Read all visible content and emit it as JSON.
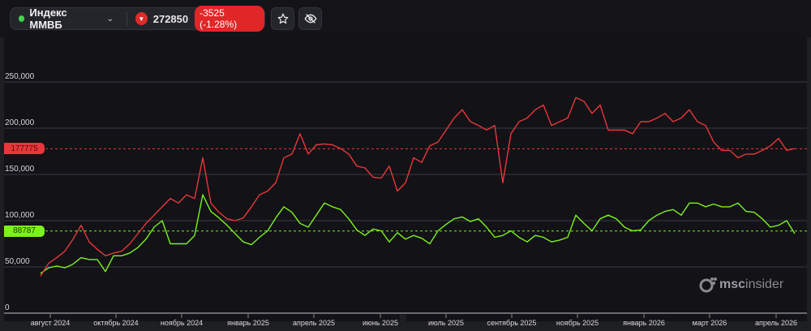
{
  "header": {
    "status_color": "#3fd24a",
    "ticker": "Индекс ММВБ",
    "dropdown_icon": "chevron-down-icon",
    "direction_icon": "triangle-down-icon",
    "price": "272850",
    "change": "-3525 (-1.28%)",
    "favorite_icon": "star-icon",
    "hide_icon": "eye-off-icon"
  },
  "watermark": {
    "brand": "msc",
    "brand2": "insider"
  },
  "chart_data": {
    "type": "line",
    "title": "",
    "xlabel": "",
    "ylabel": "",
    "ylim": [
      0,
      270000
    ],
    "grid": true,
    "y_ticks": [
      0,
      50000,
      100000,
      150000,
      200000,
      250000
    ],
    "y_tick_labels": [
      "0",
      "50,000",
      "100,000",
      "150,000",
      "200,000",
      "250,000"
    ],
    "x_tick_labels": [
      "август 2024",
      "октябрь 2024",
      "ноябрь 2024",
      "январь 2025",
      "апрель 2025",
      "июнь 2025",
      "июль 2025",
      "сентябрь 2025",
      "ноябрь 2025",
      "январь 2026",
      "март 2026",
      "апрель 2026"
    ],
    "price_lines": [
      {
        "value": 177775,
        "label": "177775",
        "color": "#e8373a"
      },
      {
        "value": 88787,
        "label": "88787",
        "color": "#7cf21c"
      }
    ],
    "series": [
      {
        "color": "#e8373a",
        "values": [
          40000,
          54000,
          60000,
          67000,
          80000,
          95000,
          77000,
          69000,
          62000,
          65000,
          67000,
          75000,
          86000,
          97000,
          106000,
          115000,
          124000,
          119000,
          128000,
          124000,
          168000,
          119000,
          109000,
          102000,
          100000,
          103000,
          115000,
          128000,
          132000,
          141000,
          168000,
          172000,
          194000,
          172000,
          182000,
          183000,
          182000,
          178000,
          172000,
          159000,
          157000,
          147000,
          146000,
          159000,
          132000,
          141000,
          168000,
          163000,
          181000,
          185000,
          198000,
          211000,
          220000,
          207000,
          203000,
          198000,
          203000,
          141000,
          194000,
          207000,
          211000,
          220000,
          225000,
          203000,
          207000,
          211000,
          233000,
          229000,
          216000,
          225000,
          198000,
          198000,
          198000,
          194000,
          207000,
          207000,
          211000,
          216000,
          207000,
          211000,
          220000,
          207000,
          203000,
          185000,
          176000,
          176000,
          168000,
          172000,
          172000,
          176000,
          181000,
          189000,
          176000,
          178000
        ]
      },
      {
        "color": "#7cf21c",
        "values": [
          43000,
          49000,
          51000,
          49000,
          53000,
          60000,
          58000,
          58000,
          45000,
          62000,
          62000,
          65000,
          71000,
          80000,
          93000,
          100000,
          75000,
          75000,
          75000,
          84000,
          128000,
          110000,
          103000,
          95000,
          86000,
          77000,
          74000,
          82000,
          89000,
          103000,
          115000,
          109000,
          97000,
          93000,
          106000,
          119000,
          115000,
          112000,
          102000,
          90000,
          84000,
          91000,
          89000,
          77000,
          87000,
          80000,
          84000,
          81000,
          75000,
          89000,
          96000,
          102000,
          104000,
          99000,
          102000,
          93000,
          82000,
          84000,
          89000,
          82000,
          77000,
          84000,
          82000,
          77000,
          79000,
          82000,
          106000,
          97000,
          89000,
          102000,
          106000,
          102000,
          93000,
          89000,
          90000,
          100000,
          106000,
          110000,
          112000,
          106000,
          119000,
          119000,
          115000,
          118000,
          115000,
          115000,
          119000,
          110000,
          109000,
          102000,
          93000,
          95000,
          100000,
          86000
        ]
      }
    ]
  }
}
